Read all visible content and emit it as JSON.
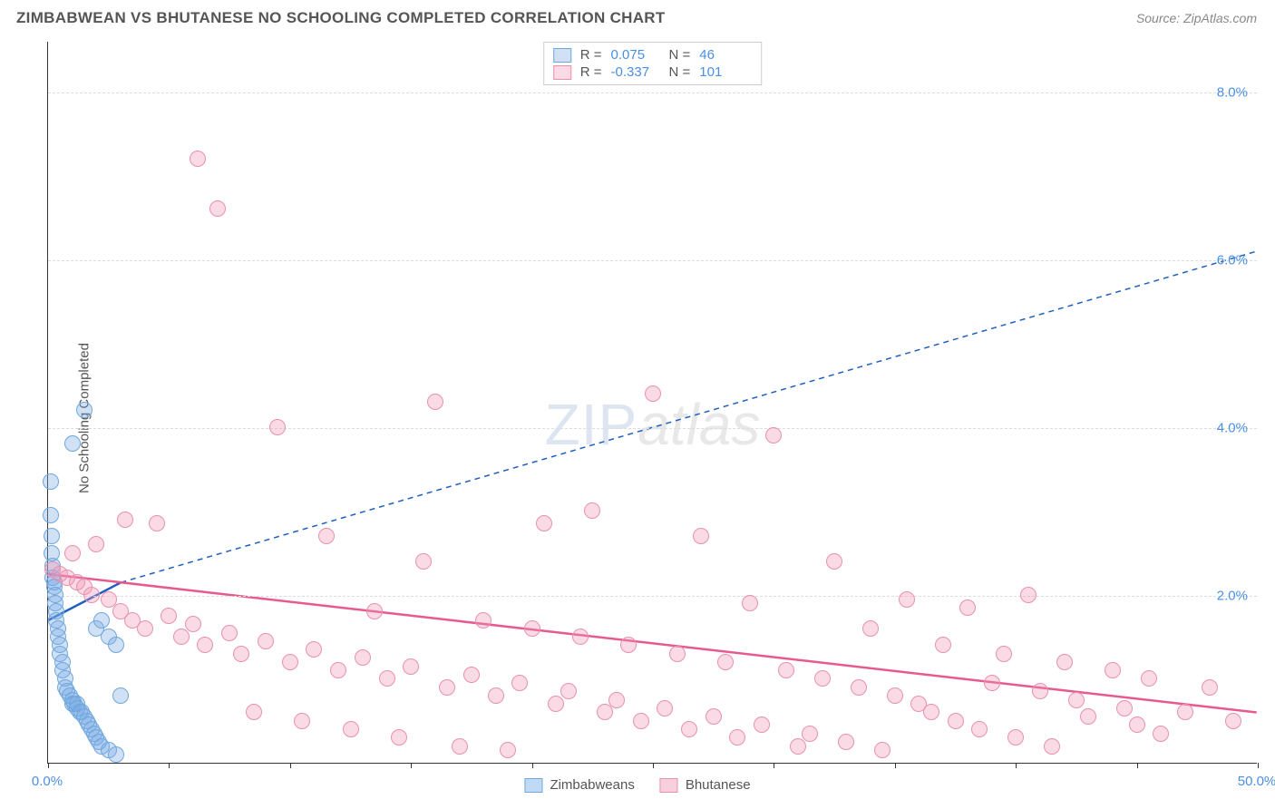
{
  "header": {
    "title": "ZIMBABWEAN VS BHUTANESE NO SCHOOLING COMPLETED CORRELATION CHART",
    "source": "Source: ZipAtlas.com"
  },
  "ylabel": "No Schooling Completed",
  "watermark": {
    "a": "ZIP",
    "b": "atlas"
  },
  "chart": {
    "type": "scatter",
    "xlim": [
      0,
      50
    ],
    "ylim": [
      0,
      8.6
    ],
    "xtick_vals": [
      0,
      5,
      10,
      15,
      20,
      25,
      30,
      35,
      40,
      45,
      50
    ],
    "xtick_labels": {
      "0": "0.0%",
      "50": "50.0%"
    },
    "ygrid": [
      2,
      4,
      6,
      8
    ],
    "ytick_labels": {
      "2": "2.0%",
      "4": "4.0%",
      "6": "6.0%",
      "8": "8.0%"
    },
    "grid_color": "#dddddd",
    "axis_color": "#333333",
    "label_color": "#4a90e2",
    "marker_radius": 9,
    "series": [
      {
        "name": "Zimbabweans",
        "fill": "rgba(120,170,230,0.35)",
        "stroke": "#6fa8dc",
        "line_stroke": "#1f5fbf",
        "line_solid": {
          "x1": 0,
          "y1": 1.7,
          "x2": 3,
          "y2": 2.15
        },
        "line_dash": {
          "x1": 3,
          "y1": 2.15,
          "x2": 50,
          "y2": 6.1
        },
        "R": "0.075",
        "N": "46",
        "points": [
          [
            0.1,
            3.35
          ],
          [
            0.1,
            2.95
          ],
          [
            0.15,
            2.7
          ],
          [
            0.15,
            2.5
          ],
          [
            0.2,
            2.35
          ],
          [
            0.2,
            2.2
          ],
          [
            0.25,
            2.15
          ],
          [
            0.25,
            2.1
          ],
          [
            0.3,
            2.0
          ],
          [
            0.3,
            1.9
          ],
          [
            0.35,
            1.8
          ],
          [
            0.35,
            1.7
          ],
          [
            0.4,
            1.6
          ],
          [
            0.4,
            1.5
          ],
          [
            0.5,
            1.4
          ],
          [
            0.5,
            1.3
          ],
          [
            0.6,
            1.2
          ],
          [
            0.6,
            1.1
          ],
          [
            0.7,
            1.0
          ],
          [
            0.7,
            0.9
          ],
          [
            0.8,
            0.85
          ],
          [
            0.9,
            0.8
          ],
          [
            1.0,
            0.75
          ],
          [
            1.0,
            0.7
          ],
          [
            1.1,
            0.7
          ],
          [
            1.2,
            0.7
          ],
          [
            1.2,
            0.65
          ],
          [
            1.3,
            0.6
          ],
          [
            1.4,
            0.6
          ],
          [
            1.5,
            0.55
          ],
          [
            1.6,
            0.5
          ],
          [
            1.7,
            0.45
          ],
          [
            1.8,
            0.4
          ],
          [
            1.9,
            0.35
          ],
          [
            2.0,
            0.3
          ],
          [
            2.1,
            0.25
          ],
          [
            2.2,
            0.2
          ],
          [
            2.5,
            0.15
          ],
          [
            2.8,
            0.1
          ],
          [
            1.0,
            3.8
          ],
          [
            1.5,
            4.2
          ],
          [
            2.0,
            1.6
          ],
          [
            2.2,
            1.7
          ],
          [
            2.5,
            1.5
          ],
          [
            2.8,
            1.4
          ],
          [
            3.0,
            0.8
          ]
        ]
      },
      {
        "name": "Bhutanese",
        "fill": "rgba(240,150,180,0.35)",
        "stroke": "#e890b0",
        "line_stroke": "#e75a8d",
        "line_solid": {
          "x1": 0,
          "y1": 2.25,
          "x2": 50,
          "y2": 0.6
        },
        "line_dash": null,
        "R": "-0.337",
        "N": "101",
        "points": [
          [
            0.2,
            2.3
          ],
          [
            0.5,
            2.25
          ],
          [
            0.8,
            2.2
          ],
          [
            1.0,
            2.5
          ],
          [
            1.2,
            2.15
          ],
          [
            1.5,
            2.1
          ],
          [
            1.8,
            2.0
          ],
          [
            2.0,
            2.6
          ],
          [
            2.5,
            1.95
          ],
          [
            3.0,
            1.8
          ],
          [
            3.2,
            2.9
          ],
          [
            3.5,
            1.7
          ],
          [
            4.0,
            1.6
          ],
          [
            4.5,
            2.85
          ],
          [
            5.0,
            1.75
          ],
          [
            5.5,
            1.5
          ],
          [
            6.0,
            1.65
          ],
          [
            6.2,
            7.2
          ],
          [
            6.5,
            1.4
          ],
          [
            7.0,
            6.6
          ],
          [
            7.5,
            1.55
          ],
          [
            8.0,
            1.3
          ],
          [
            8.5,
            0.6
          ],
          [
            9.0,
            1.45
          ],
          [
            9.5,
            4.0
          ],
          [
            10.0,
            1.2
          ],
          [
            10.5,
            0.5
          ],
          [
            11.0,
            1.35
          ],
          [
            11.5,
            2.7
          ],
          [
            12.0,
            1.1
          ],
          [
            12.5,
            0.4
          ],
          [
            13.0,
            1.25
          ],
          [
            13.5,
            1.8
          ],
          [
            14.0,
            1.0
          ],
          [
            14.5,
            0.3
          ],
          [
            15.0,
            1.15
          ],
          [
            15.5,
            2.4
          ],
          [
            16.0,
            4.3
          ],
          [
            16.5,
            0.9
          ],
          [
            17.0,
            0.2
          ],
          [
            17.5,
            1.05
          ],
          [
            18.0,
            1.7
          ],
          [
            18.5,
            0.8
          ],
          [
            19.0,
            0.15
          ],
          [
            19.5,
            0.95
          ],
          [
            20.0,
            1.6
          ],
          [
            20.5,
            2.85
          ],
          [
            21.0,
            0.7
          ],
          [
            21.5,
            0.85
          ],
          [
            22.0,
            1.5
          ],
          [
            22.5,
            3.0
          ],
          [
            23.0,
            0.6
          ],
          [
            23.5,
            0.75
          ],
          [
            24.0,
            1.4
          ],
          [
            24.5,
            0.5
          ],
          [
            25.0,
            4.4
          ],
          [
            25.5,
            0.65
          ],
          [
            26.0,
            1.3
          ],
          [
            26.5,
            0.4
          ],
          [
            27.0,
            2.7
          ],
          [
            27.5,
            0.55
          ],
          [
            28.0,
            1.2
          ],
          [
            28.5,
            0.3
          ],
          [
            29.0,
            1.9
          ],
          [
            29.5,
            0.45
          ],
          [
            30.0,
            3.9
          ],
          [
            30.5,
            1.1
          ],
          [
            31.0,
            0.2
          ],
          [
            31.5,
            0.35
          ],
          [
            32.0,
            1.0
          ],
          [
            32.5,
            2.4
          ],
          [
            33.0,
            0.25
          ],
          [
            33.5,
            0.9
          ],
          [
            34.0,
            1.6
          ],
          [
            34.5,
            0.15
          ],
          [
            35.0,
            0.8
          ],
          [
            35.5,
            1.95
          ],
          [
            36.0,
            0.7
          ],
          [
            36.5,
            0.6
          ],
          [
            37.0,
            1.4
          ],
          [
            37.5,
            0.5
          ],
          [
            38.0,
            1.85
          ],
          [
            38.5,
            0.4
          ],
          [
            39.0,
            0.95
          ],
          [
            39.5,
            1.3
          ],
          [
            40.0,
            0.3
          ],
          [
            40.5,
            2.0
          ],
          [
            41.0,
            0.85
          ],
          [
            41.5,
            0.2
          ],
          [
            42.0,
            1.2
          ],
          [
            42.5,
            0.75
          ],
          [
            43.0,
            0.55
          ],
          [
            44.0,
            1.1
          ],
          [
            44.5,
            0.65
          ],
          [
            45.0,
            0.45
          ],
          [
            45.5,
            1.0
          ],
          [
            46.0,
            0.35
          ],
          [
            47.0,
            0.6
          ],
          [
            48.0,
            0.9
          ],
          [
            49.0,
            0.5
          ]
        ]
      }
    ]
  },
  "bottom_legend": [
    {
      "label": "Zimbabweans",
      "fill": "rgba(120,170,230,0.45)",
      "stroke": "#6fa8dc"
    },
    {
      "label": "Bhutanese",
      "fill": "rgba(240,150,180,0.45)",
      "stroke": "#e890b0"
    }
  ]
}
